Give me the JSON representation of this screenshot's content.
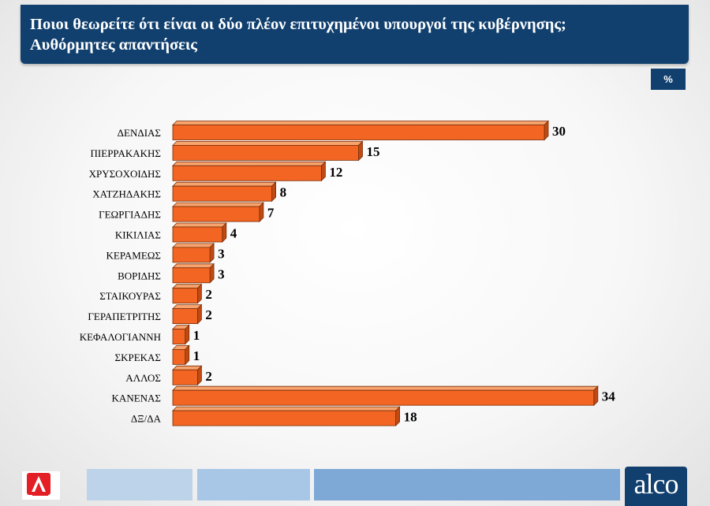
{
  "header": {
    "title_line1": "Ποιοι θεωρείτε ότι είναι οι δύο πλέον επιτυχημένοι υπουργοί της κυβέρνησης;",
    "title_line2": "Αυθόρμητες απαντήσεις"
  },
  "unit_badge": "%",
  "chart_data": {
    "type": "bar",
    "orientation": "horizontal",
    "title": "Ποιοι θεωρείτε ότι είναι οι δύο πλέον επιτυχημένοι υπουργοί της κυβέρνησης; Αυθόρμητες απαντήσεις",
    "unit": "%",
    "categories": [
      "ΔΕΝΔΙΑΣ",
      "ΠΙΕΡΡΑΚΑΚΗΣ",
      "ΧΡΥΣΟΧΟΙΔΗΣ",
      "ΧΑΤΖΗΔΑΚΗΣ",
      "ΓΕΩΡΓΙΑΔΗΣ",
      "ΚΙΚΙΛΙΑΣ",
      "ΚΕΡΑΜΕΩΣ",
      "ΒΟΡΙΔΗΣ",
      "ΣΤΑΙΚΟΥΡΑΣ",
      "ΓΕΡΑΠΕΤΡΙΤΗΣ",
      "ΚΕΦΑΛΟΓΙΑΝΝΗ",
      "ΣΚΡΕΚΑΣ",
      "ΑΛΛΟΣ",
      "ΚΑΝΕΝΑΣ",
      "ΔΞ/ΔΑ"
    ],
    "values": [
      30,
      15,
      12,
      8,
      7,
      4,
      3,
      3,
      2,
      2,
      1,
      1,
      2,
      34,
      18
    ],
    "xlim": [
      0,
      34
    ],
    "grid": false,
    "legend": "none",
    "bar_color": "#f26522",
    "bar_top_color": "#f7a36e",
    "bar_side_color": "#c04a12"
  },
  "colors": {
    "banner": "#11406f",
    "label_text": "#000000"
  },
  "footer": {
    "alco_logo_text": "alco",
    "channel_logo": "alpha-news-logo"
  }
}
